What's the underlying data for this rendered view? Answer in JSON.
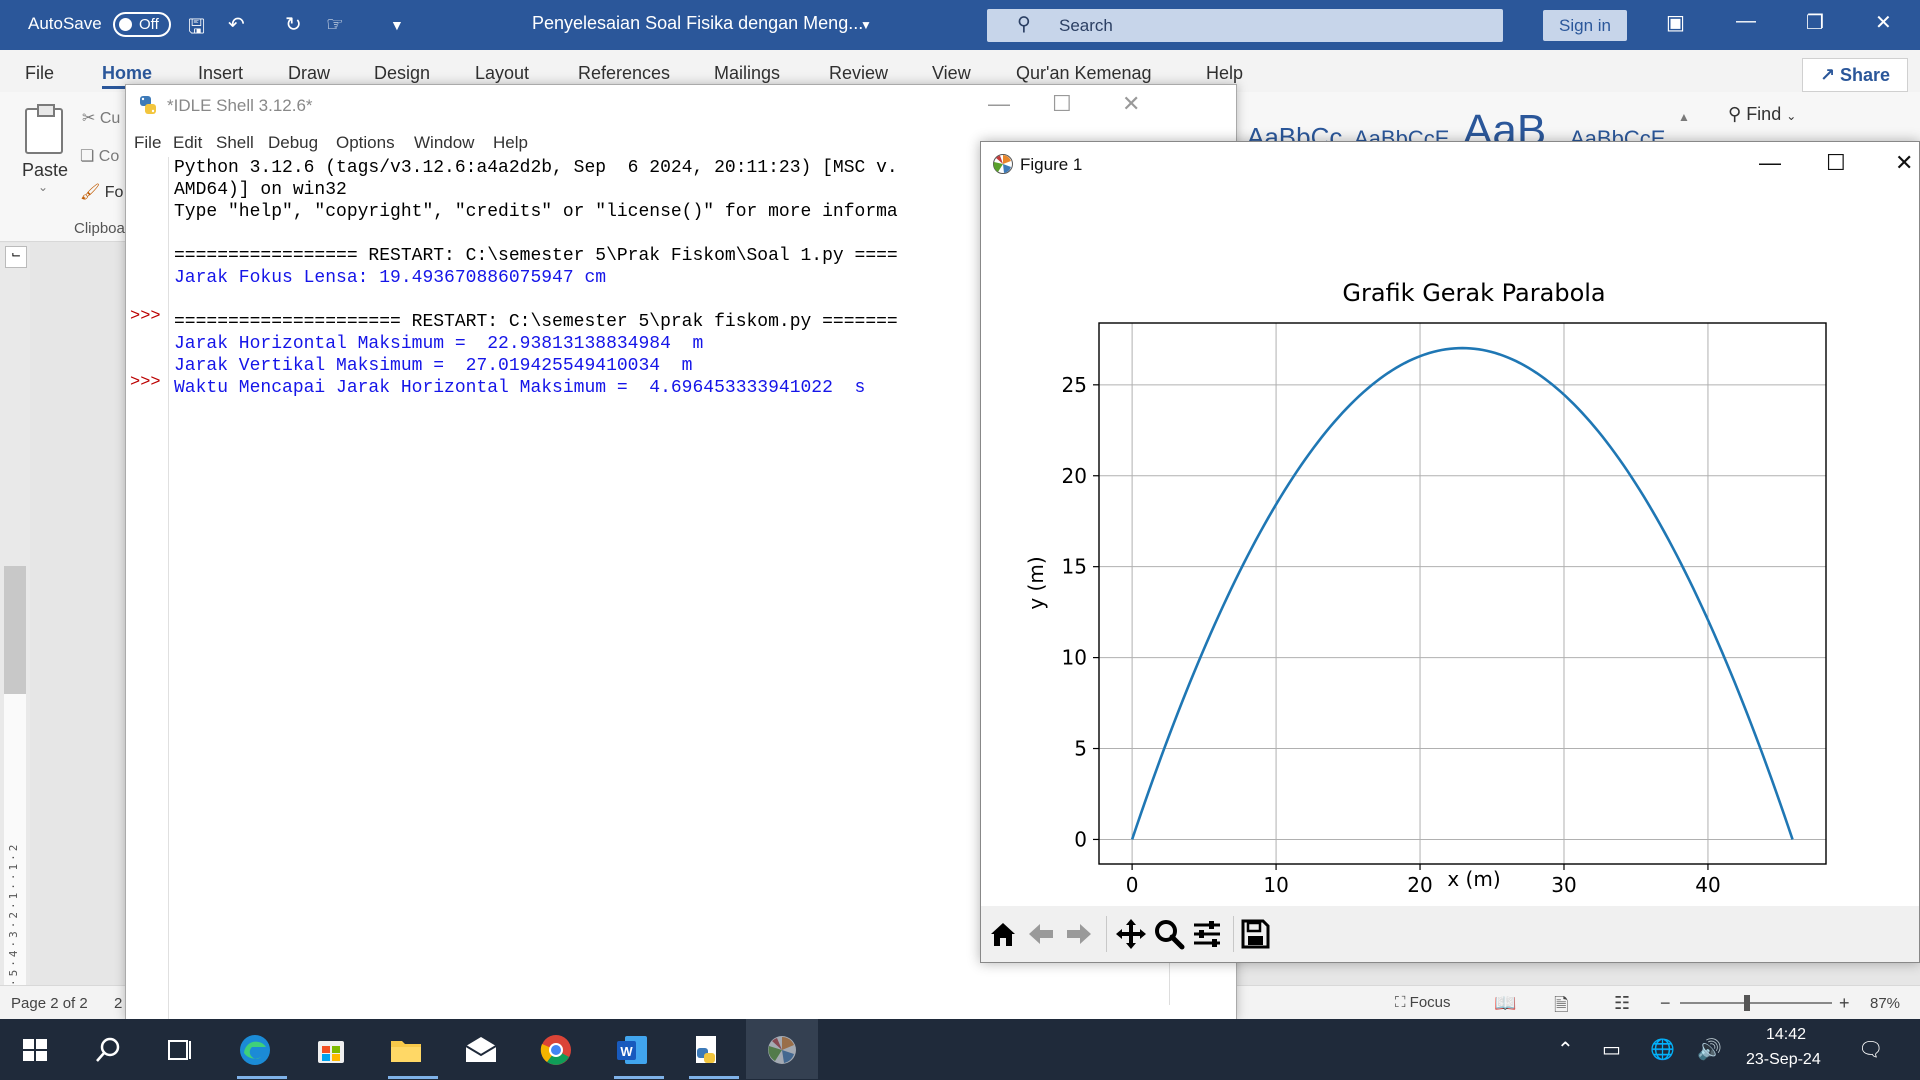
{
  "word": {
    "autosave_label": "AutoSave",
    "autosave_state": "Off",
    "doc_title": "Penyelesaian Soal Fisika dengan Meng...",
    "search_placeholder": "Search",
    "signin_label": "Sign in",
    "share_label": "Share",
    "tabs": [
      "File",
      "Home",
      "Insert",
      "Draw",
      "Design",
      "Layout",
      "References",
      "Mailings",
      "Review",
      "View",
      "Qur'an Kemenag",
      "Help"
    ],
    "active_tab": "Home",
    "clipboard": {
      "paste_label": "Paste",
      "cut_label": "Cu",
      "copy_label": "Co",
      "format_label": "Fo",
      "group_label": "Clipboa"
    },
    "styles": [
      "AaBbCc",
      "AaBbCcE",
      "AaB",
      "AaBbCcE"
    ],
    "find_label": "Find",
    "status": {
      "page": "Page 2 of 2",
      "words": "2",
      "focus_label": "Focus",
      "zoom": "87%"
    }
  },
  "idle": {
    "title": "*IDLE Shell 3.12.6*",
    "menu": [
      "File",
      "Edit",
      "Shell",
      "Debug",
      "Options",
      "Window",
      "Help"
    ],
    "prompt": ">>>",
    "lines": [
      {
        "text": "Python 3.12.6 (tags/v3.12.6:a4a2d2b, Sep  6 2024, 20:11:23) [MSC v.",
        "kind": "std"
      },
      {
        "text": "AMD64)] on win32",
        "kind": "std"
      },
      {
        "text": "Type \"help\", \"copyright\", \"credits\" or \"license()\" for more informa",
        "kind": "std"
      },
      {
        "text": "",
        "kind": "std"
      },
      {
        "text": "================= RESTART: C:\\semester 5\\Prak Fiskom\\Soal 1.py ====",
        "kind": "std"
      },
      {
        "text": "Jarak Fokus Lensa: 19.493670886075947 cm",
        "kind": "out"
      },
      {
        "text": "",
        "kind": "std"
      },
      {
        "text": "===================== RESTART: C:\\semester 5\\prak fiskom.py =======",
        "kind": "std"
      },
      {
        "text": "Jarak Horizontal Maksimum =  22.93813138834984  m",
        "kind": "out"
      },
      {
        "text": "Jarak Vertikal Maksimum =  27.019425549410034  m",
        "kind": "out"
      },
      {
        "text": "Waktu Mencapai Jarak Horizontal Maksimum =  4.696453333941022  s",
        "kind": "out"
      }
    ]
  },
  "figure": {
    "window_title": "Figure 1",
    "toolbar": [
      "home-icon",
      "back-arrow-icon",
      "forward-arrow-icon",
      "pan-icon",
      "zoom-icon",
      "configure-subplots-icon",
      "save-icon"
    ]
  },
  "chart_data": {
    "type": "line",
    "title": "Grafik Gerak Parabola",
    "xlabel": "x (m)",
    "ylabel": "y (m)",
    "xlim": [
      -2.3,
      48.2
    ],
    "ylim": [
      -1.35,
      28.4
    ],
    "xticks": [
      0,
      10,
      20,
      30,
      40
    ],
    "yticks": [
      0,
      5,
      10,
      15,
      20,
      25
    ],
    "grid": true,
    "line_color": "#1f77b4",
    "series": [
      {
        "x_max": 45.876,
        "vertex_x": 22.938,
        "y_max": 27.019
      }
    ]
  },
  "taskbar": {
    "time": "14:42",
    "date": "23-Sep-24"
  }
}
